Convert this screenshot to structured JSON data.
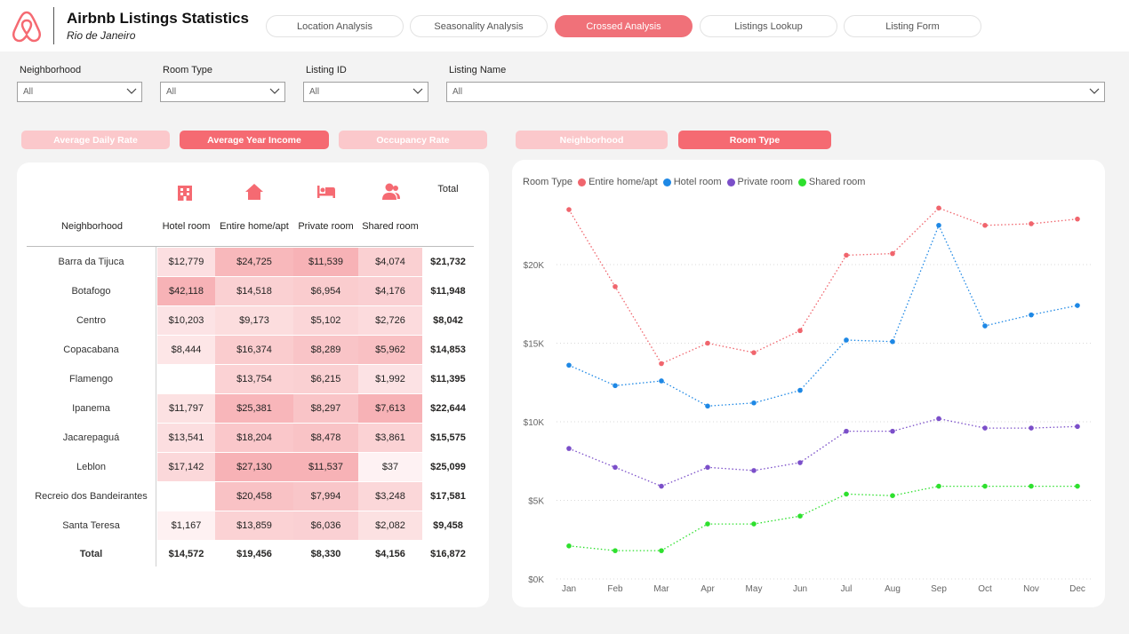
{
  "header": {
    "title": "Airbnb Listings Statistics",
    "subtitle": "Rio de Janeiro",
    "tabs": [
      {
        "label": "Location Analysis",
        "active": false
      },
      {
        "label": "Seasonality Analysis",
        "active": false
      },
      {
        "label": "Crossed Analysis",
        "active": true
      },
      {
        "label": "Listings Lookup",
        "active": false
      },
      {
        "label": "Listing Form",
        "active": false
      }
    ]
  },
  "filters": [
    {
      "label": "Neighborhood",
      "value": "All"
    },
    {
      "label": "Room Type",
      "value": "All"
    },
    {
      "label": "Listing ID",
      "value": "All"
    },
    {
      "label": "Listing Name",
      "value": "All"
    }
  ],
  "metric_buttons": [
    {
      "label": "Average Daily Rate",
      "active": false
    },
    {
      "label": "Average Year Income",
      "active": true
    },
    {
      "label": "Occupancy Rate",
      "active": false
    }
  ],
  "breakdown_buttons": [
    {
      "label": "Neighborhood",
      "active": false
    },
    {
      "label": "Room Type",
      "active": true
    }
  ],
  "colors": {
    "accent": "#f56a72",
    "accent_light": "#fbc8cb",
    "entire_home": "#f0656d",
    "hotel_room": "#1e88e5",
    "private_room": "#7b4fc9",
    "shared_room": "#2ee02e"
  },
  "matrix": {
    "row_header": "Neighborhood",
    "columns": [
      {
        "label": "Hotel room",
        "icon": "building-icon"
      },
      {
        "label": "Entire home/apt",
        "icon": "home-icon"
      },
      {
        "label": "Private room",
        "icon": "bed-icon"
      },
      {
        "label": "Shared room",
        "icon": "people-icon"
      }
    ],
    "total_label": "Total",
    "rows": [
      {
        "name": "Barra da Tijuca",
        "values": [
          "$12,779",
          "$24,725",
          "$11,539",
          "$4,074"
        ],
        "total": "$21,732",
        "raw": [
          12779,
          24725,
          11539,
          4074
        ]
      },
      {
        "name": "Botafogo",
        "values": [
          "$42,118",
          "$14,518",
          "$6,954",
          "$4,176"
        ],
        "total": "$11,948",
        "raw": [
          42118,
          14518,
          6954,
          4176
        ]
      },
      {
        "name": "Centro",
        "values": [
          "$10,203",
          "$9,173",
          "$5,102",
          "$2,726"
        ],
        "total": "$8,042",
        "raw": [
          10203,
          9173,
          5102,
          2726
        ]
      },
      {
        "name": "Copacabana",
        "values": [
          "$8,444",
          "$16,374",
          "$8,289",
          "$5,962"
        ],
        "total": "$14,853",
        "raw": [
          8444,
          16374,
          8289,
          5962
        ]
      },
      {
        "name": "Flamengo",
        "values": [
          "",
          "$13,754",
          "$6,215",
          "$1,992"
        ],
        "total": "$11,395",
        "raw": [
          null,
          13754,
          6215,
          1992
        ]
      },
      {
        "name": "Ipanema",
        "values": [
          "$11,797",
          "$25,381",
          "$8,297",
          "$7,613"
        ],
        "total": "$22,644",
        "raw": [
          11797,
          25381,
          8297,
          7613
        ]
      },
      {
        "name": "Jacarepaguá",
        "values": [
          "$13,541",
          "$18,204",
          "$8,478",
          "$3,861"
        ],
        "total": "$15,575",
        "raw": [
          13541,
          18204,
          8478,
          3861
        ]
      },
      {
        "name": "Leblon",
        "values": [
          "$17,142",
          "$27,130",
          "$11,537",
          "$37"
        ],
        "total": "$25,099",
        "raw": [
          17142,
          27130,
          11537,
          37
        ]
      },
      {
        "name": "Recreio dos Bandeirantes",
        "values": [
          "",
          "$20,458",
          "$7,994",
          "$3,248"
        ],
        "total": "$17,581",
        "raw": [
          null,
          20458,
          7994,
          3248
        ]
      },
      {
        "name": "Santa Teresa",
        "values": [
          "$1,167",
          "$13,859",
          "$6,036",
          "$2,082"
        ],
        "total": "$9,458",
        "raw": [
          1167,
          13859,
          6036,
          2082
        ]
      }
    ],
    "totals_row": {
      "name": "Total",
      "values": [
        "$14,572",
        "$19,456",
        "$8,330",
        "$4,156"
      ],
      "total": "$16,872"
    }
  },
  "chart_data": {
    "type": "line",
    "legend_title": "Room Type",
    "legend_position": "top-left",
    "categories": [
      "Jan",
      "Feb",
      "Mar",
      "Apr",
      "May",
      "Jun",
      "Jul",
      "Aug",
      "Sep",
      "Oct",
      "Nov",
      "Dec"
    ],
    "ylim": [
      0,
      24000
    ],
    "yticks": [
      0,
      5000,
      10000,
      15000,
      20000
    ],
    "ytick_labels": [
      "$0K",
      "$5K",
      "$10K",
      "$15K",
      "$20K"
    ],
    "grid": true,
    "series": [
      {
        "name": "Entire home/apt",
        "color": "#f0656d",
        "values": [
          23500,
          18600,
          13700,
          15000,
          14400,
          15800,
          20600,
          20700,
          23600,
          22500,
          22600,
          22900
        ]
      },
      {
        "name": "Hotel room",
        "color": "#1e88e5",
        "values": [
          13600,
          12300,
          12600,
          11000,
          11200,
          12000,
          15200,
          15100,
          22500,
          16100,
          16800,
          17400
        ]
      },
      {
        "name": "Private room",
        "color": "#7b4fc9",
        "values": [
          8300,
          7100,
          5900,
          7100,
          6900,
          7400,
          9400,
          9400,
          10200,
          9600,
          9600,
          9700
        ]
      },
      {
        "name": "Shared room",
        "color": "#2ee02e",
        "values": [
          2100,
          1800,
          1800,
          3500,
          3500,
          4000,
          5400,
          5300,
          5900,
          5900,
          5900,
          5900
        ]
      }
    ]
  }
}
